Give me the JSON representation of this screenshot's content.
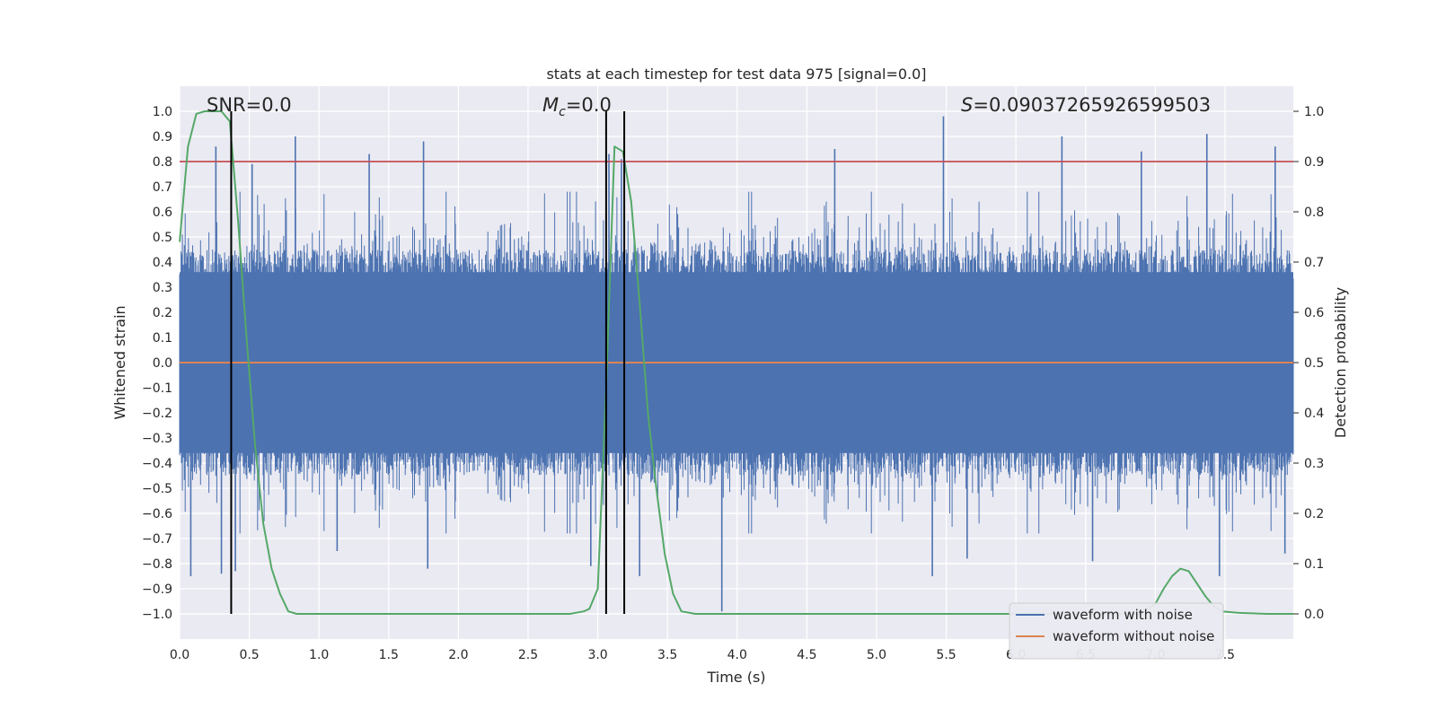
{
  "chart_data": {
    "type": "line",
    "title": "stats at each timestep for test data 975 [signal=0.0]",
    "xlabel": "Time (s)",
    "ylabel_left": "Whitened strain",
    "ylabel_right": "Detection probability",
    "xlim": [
      0,
      7.99
    ],
    "ylim_left": [
      -1.1,
      1.1
    ],
    "ylim_right": [
      -0.05,
      1.05
    ],
    "grid": true,
    "x_ticks": [
      "0.0",
      "0.5",
      "1.0",
      "1.5",
      "2.0",
      "2.5",
      "3.0",
      "3.5",
      "4.0",
      "4.5",
      "5.0",
      "5.5",
      "6.0",
      "6.5",
      "7.0",
      "7.5"
    ],
    "left_ticks": [
      "1.0",
      "0.9",
      "0.8",
      "0.7",
      "0.6",
      "0.5",
      "0.4",
      "0.3",
      "0.2",
      "0.1",
      "0.0",
      "−0.1",
      "−0.2",
      "−0.3",
      "−0.4",
      "−0.5",
      "−0.6",
      "−0.7",
      "−0.8",
      "−0.9",
      "−1.0"
    ],
    "right_ticks": [
      "1.0",
      "0.9",
      "0.8",
      "0.7",
      "0.6",
      "0.5",
      "0.4",
      "0.3",
      "0.2",
      "0.1",
      "0.0"
    ],
    "annotations": {
      "snr": "SNR=0.0",
      "mc_symbol": "M",
      "mc_sub": "c",
      "mc_value": "=0.0",
      "s_symbol": "S",
      "s_value": "=0.09037265926599503"
    },
    "threshold": {
      "name": "detection threshold",
      "value": 0.9,
      "axis": "right",
      "color": "#c44e52"
    },
    "vertical_lines": [
      0.37,
      3.06,
      3.19
    ],
    "series": [
      {
        "name": "waveform with noise",
        "axis": "left",
        "color": "#4c72b0",
        "kind": "noise",
        "x_range": [
          0.0,
          7.99
        ],
        "typical_amplitude": [
          -0.4,
          0.4
        ],
        "peak_spikes": [
          {
            "x": 0.26,
            "y": 0.86
          },
          {
            "x": 0.37,
            "y": 0.8
          },
          {
            "x": 0.52,
            "y": 0.79
          },
          {
            "x": 0.83,
            "y": 0.9
          },
          {
            "x": 1.36,
            "y": 0.83
          },
          {
            "x": 1.75,
            "y": 0.88
          },
          {
            "x": 3.08,
            "y": 0.83
          },
          {
            "x": 3.17,
            "y": 0.81
          },
          {
            "x": 4.7,
            "y": 0.85
          },
          {
            "x": 5.48,
            "y": 0.98
          },
          {
            "x": 6.33,
            "y": 0.9
          },
          {
            "x": 6.9,
            "y": 0.84
          },
          {
            "x": 7.37,
            "y": 0.91
          },
          {
            "x": 7.86,
            "y": 0.86
          }
        ],
        "trough_spikes": [
          {
            "x": 0.08,
            "y": -0.85
          },
          {
            "x": 0.3,
            "y": -0.84
          },
          {
            "x": 0.4,
            "y": -0.83
          },
          {
            "x": 1.13,
            "y": -0.75
          },
          {
            "x": 1.78,
            "y": -0.82
          },
          {
            "x": 2.95,
            "y": -0.81
          },
          {
            "x": 3.3,
            "y": -0.85
          },
          {
            "x": 3.89,
            "y": -0.99
          },
          {
            "x": 5.4,
            "y": -0.85
          },
          {
            "x": 5.65,
            "y": -0.78
          },
          {
            "x": 6.55,
            "y": -0.79
          },
          {
            "x": 7.46,
            "y": -0.85
          },
          {
            "x": 7.93,
            "y": -0.76
          }
        ]
      },
      {
        "name": "waveform without noise",
        "axis": "left",
        "color": "#dd8452",
        "x": [
          0.0,
          7.99
        ],
        "y": [
          0.0,
          0.0
        ]
      },
      {
        "name": "detection probability",
        "axis": "right",
        "color": "#55a868",
        "x": [
          0.0,
          0.06,
          0.12,
          0.18,
          0.24,
          0.3,
          0.36,
          0.42,
          0.48,
          0.54,
          0.6,
          0.66,
          0.72,
          0.78,
          0.84,
          0.9,
          1.5,
          2.0,
          2.5,
          2.8,
          2.9,
          2.94,
          3.0,
          3.06,
          3.12,
          3.18,
          3.24,
          3.3,
          3.36,
          3.42,
          3.48,
          3.54,
          3.6,
          3.7,
          4.0,
          5.0,
          6.0,
          6.9,
          7.0,
          7.06,
          7.12,
          7.18,
          7.24,
          7.3,
          7.36,
          7.42,
          7.48,
          7.6,
          7.8,
          7.99
        ],
        "y": [
          0.74,
          0.93,
          0.995,
          1.0,
          1.0,
          1.0,
          0.98,
          0.78,
          0.55,
          0.34,
          0.18,
          0.09,
          0.04,
          0.005,
          0.0,
          0.0,
          0.0,
          0.0,
          0.0,
          0.0,
          0.005,
          0.01,
          0.05,
          0.45,
          0.93,
          0.92,
          0.82,
          0.62,
          0.4,
          0.25,
          0.12,
          0.04,
          0.005,
          0.0,
          0.0,
          0.0,
          0.0,
          0.0,
          0.02,
          0.05,
          0.075,
          0.09,
          0.085,
          0.06,
          0.035,
          0.015,
          0.005,
          0.002,
          0.0,
          0.0
        ]
      }
    ],
    "legend": {
      "placement": "lower-right",
      "entries": [
        {
          "label": "waveform with noise",
          "color": "#4c72b0"
        },
        {
          "label": "waveform without noise",
          "color": "#dd8452"
        }
      ]
    }
  }
}
